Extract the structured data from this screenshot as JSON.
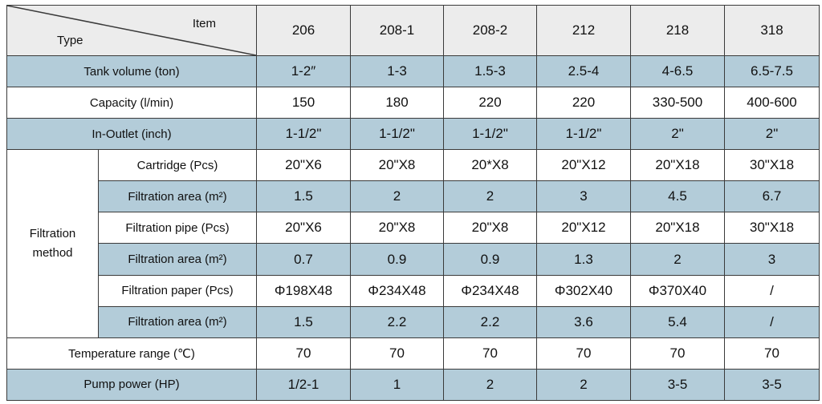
{
  "header": {
    "item_label": "Item",
    "type_label": "Type",
    "columns": [
      "206",
      "208-1",
      "208-2",
      "212",
      "218",
      "318"
    ]
  },
  "rows": {
    "tank_volume": {
      "label": "Tank volume (ton)",
      "values": [
        "1-2″",
        "1-3",
        "1.5-3",
        "2.5-4",
        "4-6.5",
        "6.5-7.5"
      ]
    },
    "capacity": {
      "label": "Capacity  (l/min)",
      "values": [
        "150",
        "180",
        "220",
        "220",
        "330-500",
        "400-600"
      ]
    },
    "in_outlet": {
      "label": "In-Outlet (inch)",
      "values": [
        "1-1/2\"",
        "1-1/2\"",
        "1-1/2\"",
        "1-1/2\"",
        "2\"",
        "2\""
      ]
    },
    "filtration_method": {
      "label_line1": "Filtration",
      "label_line2": "method",
      "subrows": [
        {
          "label": "Cartridge (Pcs)",
          "values": [
            "20\"X6",
            "20\"X8",
            "20*X8",
            "20\"X12",
            "20\"X18",
            "30\"X18"
          ]
        },
        {
          "label": "Filtration area (m²)",
          "values": [
            "1.5",
            "2",
            "2",
            "3",
            "4.5",
            "6.7"
          ]
        },
        {
          "label": "Filtration pipe (Pcs)",
          "values": [
            "20\"X6",
            "20\"X8",
            "20\"X8",
            "20\"X12",
            "20\"X18",
            "30\"X18"
          ]
        },
        {
          "label": "Filtration area (m²)",
          "values": [
            "0.7",
            "0.9",
            "0.9",
            "1.3",
            "2",
            "3"
          ]
        },
        {
          "label": "Filtration paper (Pcs)",
          "values": [
            "Φ198X48",
            "Φ234X48",
            "Φ234X48",
            "Φ302X40",
            "Φ370X40",
            "/"
          ]
        },
        {
          "label": "Filtration area (m²)",
          "values": [
            "1.5",
            "2.2",
            "2.2",
            "3.6",
            "5.4",
            "/"
          ]
        }
      ]
    },
    "temperature": {
      "label": "Temperature range (℃)",
      "values": [
        "70",
        "70",
        "70",
        "70",
        "70",
        "70"
      ]
    },
    "pump_power": {
      "label": "Pump power  (HP)",
      "values": [
        "1/2-1",
        "1",
        "2",
        "2",
        "3-5",
        "3-5"
      ]
    }
  },
  "colors": {
    "blue_row": "#b3ccd9",
    "header_bg": "#ececec",
    "border": "#3a3a3a"
  }
}
